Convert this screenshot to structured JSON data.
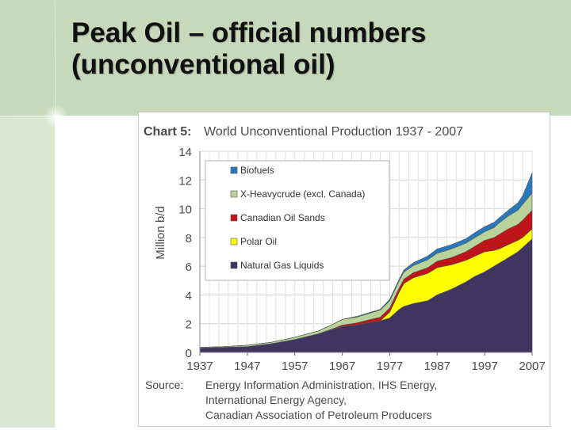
{
  "slide": {
    "title_line1": "Peak Oil – official numbers",
    "title_line2": "(unconventional oil)"
  },
  "chart_data": {
    "type": "area",
    "stacked": true,
    "chart_label": "Chart 5:",
    "title": "World Unconventional Production 1937 - 2007",
    "ylabel": "Million b/d",
    "xlabel": "",
    "xlim": [
      1937,
      2007
    ],
    "ylim": [
      0,
      14
    ],
    "x_ticks": [
      "1937",
      "1947",
      "1957",
      "1967",
      "1977",
      "1987",
      "1997",
      "2007"
    ],
    "y_ticks": [
      "0",
      "2",
      "4",
      "6",
      "8",
      "10",
      "12",
      "14"
    ],
    "grid": true,
    "legend_position": "top-left",
    "source_label": "Source:",
    "source_lines": [
      "Energy Information Administration, IHS Energy,",
      "International Energy Agency,",
      "Canadian Association of Petroleum Producers"
    ],
    "x": [
      1937,
      1942,
      1947,
      1952,
      1957,
      1962,
      1965,
      1967,
      1970,
      1973,
      1975,
      1977,
      1979,
      1980,
      1982,
      1985,
      1987,
      1990,
      1993,
      1995,
      1997,
      1999,
      2000,
      2002,
      2004,
      2005,
      2007
    ],
    "series": [
      {
        "name": "Natural Gas Liquids",
        "color": "#3f3560",
        "values": [
          0.3,
          0.35,
          0.4,
          0.6,
          0.9,
          1.3,
          1.6,
          1.8,
          1.9,
          2.1,
          2.2,
          2.4,
          3.0,
          3.2,
          3.4,
          3.6,
          4.0,
          4.4,
          4.9,
          5.3,
          5.6,
          6.0,
          6.2,
          6.6,
          7.0,
          7.3,
          7.9
        ]
      },
      {
        "name": "Polar Oil",
        "color": "#ffff00",
        "values": [
          0,
          0,
          0,
          0,
          0,
          0,
          0,
          0,
          0,
          0,
          0,
          0.4,
          1.2,
          1.6,
          1.8,
          1.9,
          1.9,
          1.7,
          1.5,
          1.4,
          1.4,
          1.1,
          1.0,
          0.9,
          0.8,
          0.7,
          0.7
        ]
      },
      {
        "name": "Canadian Oil Sands",
        "color": "#c0141b",
        "values": [
          0,
          0,
          0,
          0,
          0,
          0,
          0.05,
          0.1,
          0.15,
          0.2,
          0.25,
          0.3,
          0.3,
          0.3,
          0.35,
          0.4,
          0.45,
          0.5,
          0.6,
          0.7,
          0.8,
          0.9,
          1.0,
          1.1,
          1.1,
          1.2,
          1.3
        ]
      },
      {
        "name": "X-Heavycrude (excl. Canada)",
        "color": "#b9d49a",
        "values": [
          0.05,
          0.05,
          0.1,
          0.1,
          0.15,
          0.2,
          0.3,
          0.4,
          0.4,
          0.45,
          0.5,
          0.5,
          0.5,
          0.5,
          0.5,
          0.55,
          0.55,
          0.6,
          0.6,
          0.6,
          0.6,
          0.7,
          0.8,
          0.9,
          1.0,
          1.1,
          1.2
        ]
      },
      {
        "name": "Biofuels",
        "color": "#2778bd",
        "values": [
          0,
          0,
          0,
          0,
          0,
          0,
          0,
          0,
          0.05,
          0.05,
          0.05,
          0.1,
          0.1,
          0.15,
          0.2,
          0.25,
          0.3,
          0.3,
          0.3,
          0.35,
          0.35,
          0.35,
          0.35,
          0.4,
          0.5,
          0.6,
          1.4
        ]
      }
    ]
  }
}
